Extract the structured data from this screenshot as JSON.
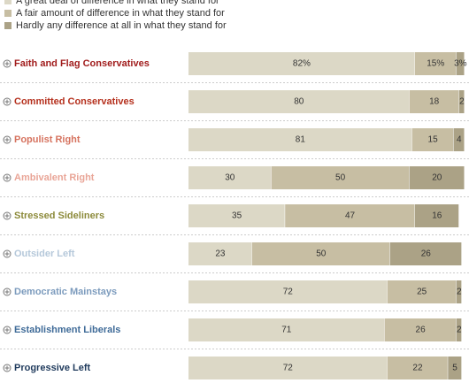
{
  "chart_data": {
    "type": "bar",
    "orientation": "horizontal",
    "stacked": true,
    "categories": [
      "Faith and Flag Conservatives",
      "Committed Conservatives",
      "Populist Right",
      "Ambivalent Right",
      "Stressed Sideliners",
      "Outsider Left",
      "Democratic Mainstays",
      "Establishment Liberals",
      "Progressive Left"
    ],
    "category_colors": [
      "#a11d1d",
      "#b5301d",
      "#d6735f",
      "#e9a597",
      "#8c8a3a",
      "#b5c8da",
      "#7c9bbd",
      "#3f6b98",
      "#1f3a5c"
    ],
    "xlim": [
      0,
      100
    ],
    "series": [
      {
        "name": "A great deal of difference in what they stand for",
        "color": "#dcd8c6",
        "values": [
          82,
          80,
          81,
          30,
          35,
          23,
          72,
          71,
          72
        ],
        "value_labels": [
          "82%",
          "80",
          "81",
          "30",
          "35",
          "23",
          "72",
          "71",
          "72"
        ]
      },
      {
        "name": "A fair amount of difference in what they stand for",
        "color": "#c7bea3",
        "values": [
          15,
          18,
          15,
          50,
          47,
          50,
          25,
          26,
          22
        ],
        "value_labels": [
          "15%",
          "18",
          "15",
          "50",
          "47",
          "50",
          "25",
          "26",
          "22"
        ]
      },
      {
        "name": "Hardly any difference at all in what they stand for",
        "color": "#aba286",
        "values": [
          3,
          2,
          4,
          20,
          16,
          26,
          2,
          2,
          5
        ],
        "value_labels": [
          "3%",
          "2",
          "4",
          "20",
          "16",
          "26",
          "2",
          "2",
          "5"
        ]
      }
    ]
  }
}
